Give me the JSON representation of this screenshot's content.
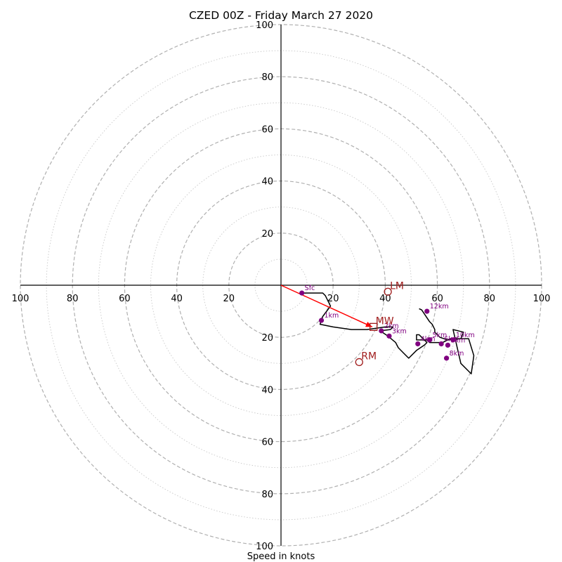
{
  "chart_data": {
    "type": "hodograph",
    "title": "CZED 00Z - Friday March 27 2020",
    "xlabel": "Speed in knots",
    "ylabel": "",
    "range_knots": 100,
    "ring_interval_knots": 20,
    "minor_ring_interval_knots": 10,
    "tick_labels": [
      "20",
      "40",
      "60",
      "80",
      "100"
    ],
    "grid": true,
    "colors": {
      "trace": "#000000",
      "height_marker": "#800080",
      "storm_motion": "#a01c1c",
      "mean_wind_vector": "#ff0000",
      "major_ring": "#b0b0b0",
      "minor_ring": "#c8c8c8"
    },
    "trace": {
      "x": [
        8,
        16,
        17,
        19,
        16,
        15,
        20,
        27,
        33,
        40,
        43,
        42,
        38,
        41,
        44,
        45,
        47,
        49,
        52,
        55,
        56,
        54,
        53,
        52,
        52,
        56,
        57,
        59,
        62,
        65,
        69,
        72,
        74,
        73,
        69,
        66,
        70,
        69,
        64,
        61,
        59,
        59,
        58,
        57,
        54,
        53
      ],
      "y": [
        -3,
        -3,
        -4,
        -8,
        -12,
        -15,
        -16,
        -17,
        -17,
        -16,
        -16,
        -17,
        -17.5,
        -19.5,
        -22,
        -24,
        -26,
        -28,
        -25,
        -23,
        -22,
        -20,
        -19,
        -19,
        -21,
        -21,
        -22,
        -22,
        -22,
        -20.5,
        -20.5,
        -20.5,
        -27,
        -34,
        -30,
        -17,
        -18,
        -20.5,
        -21,
        -20,
        -18,
        -17,
        -15,
        -14,
        -9.5,
        -9
      ]
    },
    "height_labels": [
      {
        "label": "Sfc",
        "x": 8,
        "y": -3
      },
      {
        "label": "1km",
        "x": 15.5,
        "y": -13.5
      },
      {
        "label": "2km",
        "x": 38.5,
        "y": -17.5
      },
      {
        "label": "3km",
        "x": 41.5,
        "y": -19.5
      },
      {
        "label": "4km",
        "x": 52.5,
        "y": -22.5
      },
      {
        "label": "5km",
        "x": 57,
        "y": -21
      },
      {
        "label": "6km",
        "x": 61.5,
        "y": -22.5
      },
      {
        "label": "9km",
        "x": 64,
        "y": -23
      },
      {
        "label": "10km",
        "x": 66,
        "y": -21
      },
      {
        "label": "8km",
        "x": 63.5,
        "y": -28
      },
      {
        "label": "12km",
        "x": 56,
        "y": -10
      }
    ],
    "storm_motion": [
      {
        "label": "LM",
        "x": 41,
        "y": -2.5
      },
      {
        "label": "MW",
        "x": 35.5,
        "y": -16
      },
      {
        "label": "RM",
        "x": 30,
        "y": -29.5
      }
    ],
    "mean_wind_vector": {
      "x0": 0,
      "y0": 0,
      "x1": 35,
      "y1": -16
    }
  }
}
